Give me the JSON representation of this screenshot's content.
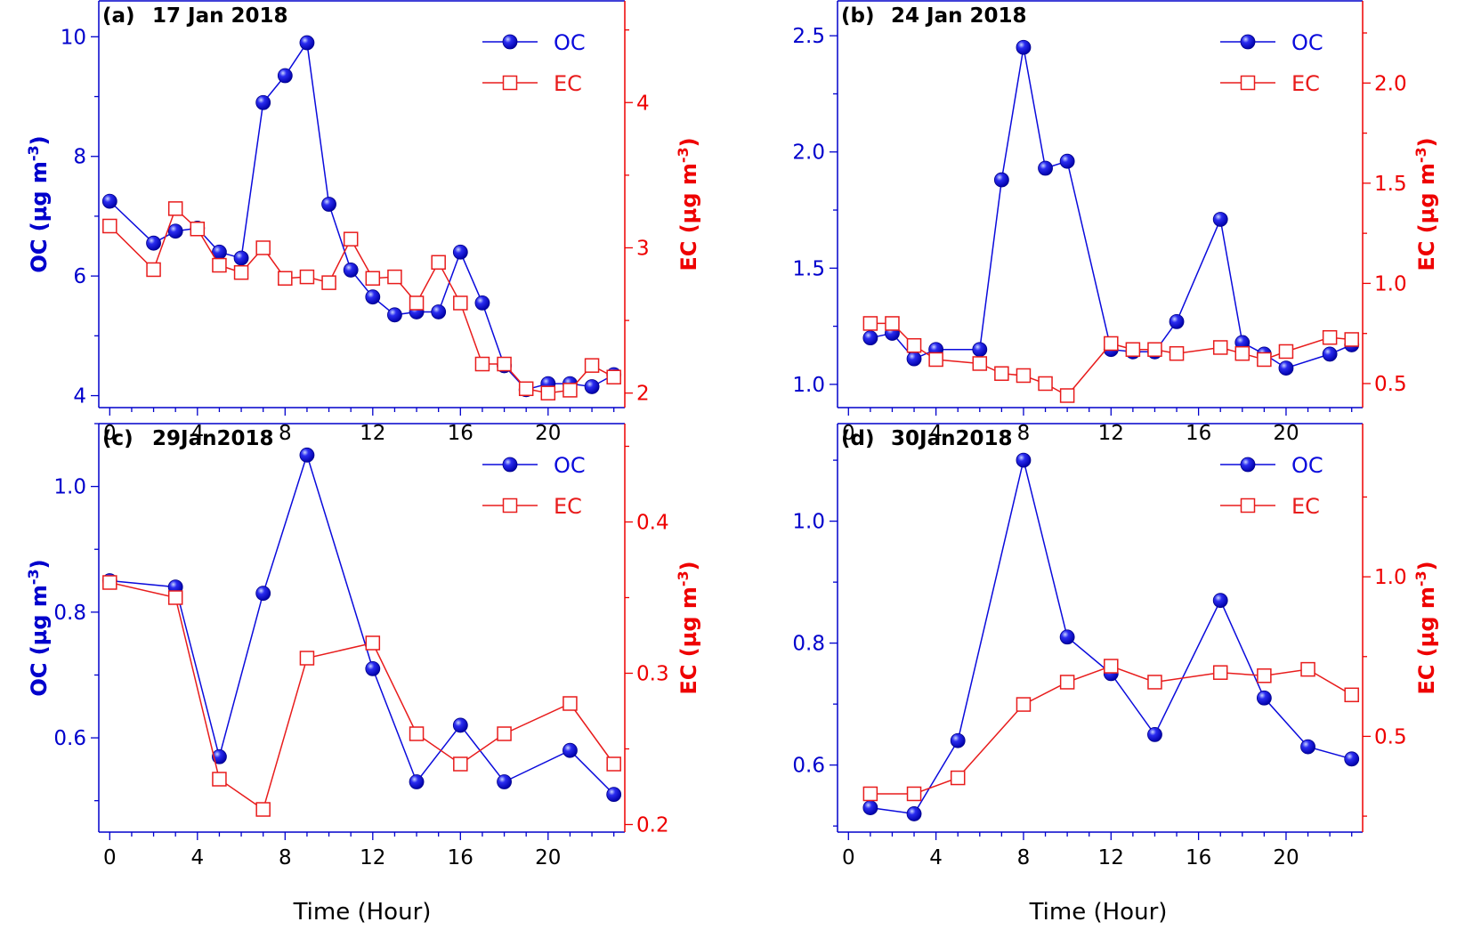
{
  "figure": {
    "x_title": "Time (Hour)",
    "colors": {
      "oc": "#0a0adc",
      "ec": "#e81c1c",
      "axis_left": "#0000cc",
      "axis_right": "#ee0000"
    }
  },
  "chart_data": [
    {
      "panel": "(a)",
      "title": "17 Jan 2018",
      "type": "line",
      "xlabel": "Time (Hour)",
      "ylabel_left": "OC (µg m-3)",
      "ylabel_right": "EC (µg m-3)",
      "xlim": [
        -0.5,
        23.5
      ],
      "ylim_left": [
        3.8,
        10.6
      ],
      "ylim_right": [
        1.9,
        4.7
      ],
      "xticks": [
        0,
        4,
        8,
        12,
        16,
        20
      ],
      "yticks_left": [
        4,
        6,
        8,
        10
      ],
      "yticks_right": [
        2,
        3,
        4
      ],
      "legend_position": "top-right",
      "series": [
        {
          "name": "OC",
          "axis": "left",
          "marker": "filled-circle",
          "x": [
            0,
            2,
            3,
            4,
            5,
            6,
            7,
            8,
            9,
            10,
            11,
            12,
            13,
            14,
            15,
            16,
            17,
            18,
            19,
            20,
            21,
            22,
            23
          ],
          "y": [
            7.25,
            6.55,
            6.75,
            6.8,
            6.4,
            6.3,
            8.9,
            9.35,
            9.9,
            7.2,
            6.1,
            5.65,
            5.35,
            5.4,
            5.4,
            6.4,
            5.55,
            4.5,
            4.1,
            4.2,
            4.2,
            4.15,
            4.35
          ]
        },
        {
          "name": "EC",
          "axis": "right",
          "marker": "open-square",
          "x": [
            0,
            2,
            3,
            4,
            5,
            6,
            7,
            8,
            9,
            10,
            11,
            12,
            13,
            14,
            15,
            16,
            17,
            18,
            19,
            20,
            21,
            22,
            23
          ],
          "y": [
            3.15,
            2.85,
            3.27,
            3.13,
            2.88,
            2.83,
            3.0,
            2.79,
            2.8,
            2.76,
            3.06,
            2.79,
            2.8,
            2.62,
            2.9,
            2.62,
            2.2,
            2.2,
            2.03,
            2.0,
            2.02,
            2.19,
            2.11
          ]
        }
      ]
    },
    {
      "panel": "(b)",
      "title": "24 Jan 2018",
      "type": "line",
      "xlabel": "Time (Hour)",
      "ylabel_left": "OC (µg m-3)",
      "ylabel_right": "EC (µg m-3)",
      "xlim": [
        -0.5,
        23.5
      ],
      "ylim_left": [
        0.9,
        2.65
      ],
      "ylim_right": [
        0.38,
        2.41
      ],
      "xticks": [
        0,
        4,
        8,
        12,
        16,
        20
      ],
      "yticks_left": [
        1.0,
        1.5,
        2.0,
        2.5
      ],
      "yticks_right": [
        0.5,
        1.0,
        1.5,
        2.0
      ],
      "legend_position": "top-right",
      "series": [
        {
          "name": "OC",
          "axis": "left",
          "marker": "filled-circle",
          "x": [
            1,
            2,
            3,
            4,
            6,
            7,
            8,
            9,
            10,
            12,
            13,
            14,
            15,
            17,
            18,
            19,
            20,
            22,
            23
          ],
          "y": [
            1.2,
            1.22,
            1.11,
            1.15,
            1.15,
            1.88,
            2.45,
            1.93,
            1.96,
            1.15,
            1.14,
            1.14,
            1.27,
            1.71,
            1.18,
            1.13,
            1.07,
            1.13,
            1.17
          ]
        },
        {
          "name": "EC",
          "axis": "right",
          "marker": "open-square",
          "x": [
            1,
            2,
            3,
            4,
            6,
            7,
            8,
            9,
            10,
            12,
            13,
            14,
            15,
            17,
            18,
            19,
            20,
            22,
            23
          ],
          "y": [
            0.8,
            0.8,
            0.69,
            0.62,
            0.6,
            0.55,
            0.54,
            0.5,
            0.44,
            0.7,
            0.67,
            0.67,
            0.65,
            0.68,
            0.65,
            0.62,
            0.66,
            0.73,
            0.72
          ]
        }
      ]
    },
    {
      "panel": "(c)",
      "title": "29Jan2018",
      "type": "line",
      "xlabel": "Time (Hour)",
      "ylabel_left": "OC (µg m-3)",
      "ylabel_right": "EC (µg m-3)",
      "xlim": [
        -0.5,
        23.5
      ],
      "ylim_left": [
        0.45,
        1.1
      ],
      "ylim_right": [
        0.195,
        0.465
      ],
      "xticks": [
        0,
        4,
        8,
        12,
        16,
        20
      ],
      "yticks_left": [
        0.6,
        0.8,
        1.0
      ],
      "yticks_right": [
        0.2,
        0.3,
        0.4
      ],
      "legend_position": "top-right",
      "series": [
        {
          "name": "OC",
          "axis": "left",
          "marker": "filled-circle",
          "x": [
            0,
            3,
            5,
            7,
            9,
            12,
            14,
            16,
            18,
            21,
            23
          ],
          "y": [
            0.85,
            0.84,
            0.57,
            0.83,
            1.05,
            0.71,
            0.53,
            0.62,
            0.53,
            0.58,
            0.51
          ]
        },
        {
          "name": "EC",
          "axis": "right",
          "marker": "open-square",
          "x": [
            0,
            3,
            5,
            7,
            9,
            12,
            14,
            16,
            18,
            21,
            23
          ],
          "y": [
            0.36,
            0.35,
            0.23,
            0.21,
            0.31,
            0.32,
            0.26,
            0.24,
            0.26,
            0.28,
            0.24
          ]
        }
      ]
    },
    {
      "panel": "(d)",
      "title": "30Jan2018",
      "type": "line",
      "xlabel": "Time (Hour)",
      "ylabel_left": "OC (µg m-3)",
      "ylabel_right": "EC (µg m-3)",
      "xlim": [
        -0.5,
        23.5
      ],
      "ylim_left": [
        0.49,
        1.16
      ],
      "ylim_right": [
        0.2,
        1.48
      ],
      "xticks": [
        0,
        4,
        8,
        12,
        16,
        20
      ],
      "yticks_left": [
        0.6,
        0.8,
        1.0
      ],
      "yticks_right": [
        0.5,
        1.0
      ],
      "legend_position": "top-right",
      "series": [
        {
          "name": "OC",
          "axis": "left",
          "marker": "filled-circle",
          "x": [
            1,
            3,
            5,
            8,
            10,
            12,
            14,
            17,
            19,
            21,
            23
          ],
          "y": [
            0.53,
            0.52,
            0.64,
            1.1,
            0.81,
            0.75,
            0.65,
            0.87,
            0.71,
            0.63,
            0.61
          ]
        },
        {
          "name": "EC",
          "axis": "right",
          "marker": "open-square",
          "x": [
            1,
            3,
            5,
            8,
            10,
            12,
            14,
            17,
            19,
            21,
            23
          ],
          "y": [
            0.32,
            0.32,
            0.37,
            0.6,
            0.67,
            0.72,
            0.67,
            0.7,
            0.69,
            0.71,
            0.63
          ]
        }
      ]
    }
  ]
}
